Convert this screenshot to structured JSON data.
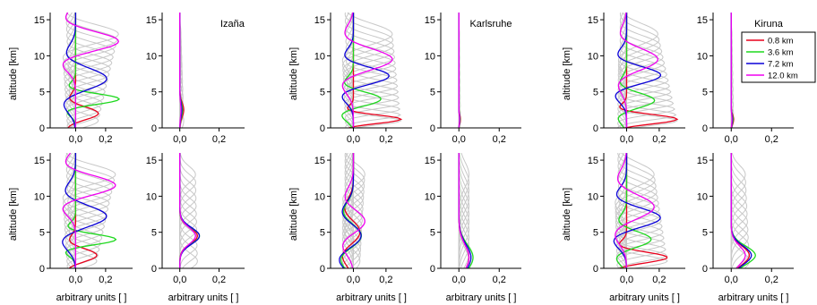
{
  "figure": {
    "site_labels": [
      "Izaña",
      "Karlsruhe",
      "Kiruna"
    ],
    "ylabel": "altitude [km]",
    "xlabel": "arbitrary units [ ]"
  },
  "legend": {
    "placement": "top-right",
    "entries": [
      {
        "label": "0.8 km",
        "color": "#e8001c"
      },
      {
        "label": "3.6 km",
        "color": "#1ed81e"
      },
      {
        "label": "7.2 km",
        "color": "#0a00d8"
      },
      {
        "label": "12.0 km",
        "color": "#f000f0"
      }
    ]
  },
  "colors": {
    "highlight": [
      "#e8001c",
      "#1ed81e",
      "#0a00d8",
      "#f000f0"
    ],
    "background_kernels": "#c8c8c8"
  },
  "chart_data": [
    {
      "type": "line",
      "site": "Izaña",
      "row": "top",
      "panel": "left",
      "ylabel": "altitude [km]",
      "xlabel": "",
      "ylim": [
        0,
        16
      ],
      "xlim": [
        -0.17,
        0.38
      ],
      "yticks": [
        0,
        5,
        10,
        15
      ],
      "xticks": [
        0.0,
        0.2
      ],
      "xtick_labels": [
        "0,0",
        "0,2"
      ],
      "n_gray": 16,
      "series": [
        {
          "name": "0.8 km",
          "color": "#e8001c",
          "peak_alt": 2.0,
          "amp": 0.16,
          "width": 1.2,
          "neg": 0.06
        },
        {
          "name": "3.6 km",
          "color": "#1ed81e",
          "peak_alt": 4.0,
          "amp": 0.3,
          "width": 1.0,
          "neg": 0.07
        },
        {
          "name": "7.2 km",
          "color": "#0a00d8",
          "peak_alt": 6.8,
          "amp": 0.22,
          "width": 2.0,
          "neg": 0.09
        },
        {
          "name": "12.0 km",
          "color": "#f000f0",
          "peak_alt": 12.0,
          "amp": 0.3,
          "width": 1.8,
          "neg": 0.1
        }
      ]
    },
    {
      "type": "line",
      "site": "Izaña",
      "row": "top",
      "panel": "right",
      "ylabel": "",
      "xlabel": "",
      "ylim": [
        0,
        16
      ],
      "xlim": [
        -0.09,
        0.33
      ],
      "yticks": [
        0,
        5,
        10,
        15
      ],
      "xticks": [
        0.0,
        0.2
      ],
      "xtick_labels": [
        "0,0",
        "0,2"
      ],
      "n_gray": 12,
      "series": [
        {
          "name": "0.8 km",
          "color": "#e8001c",
          "peak_alt": 2.5,
          "amp": 0.02,
          "width": 1.4,
          "neg": 0.0
        },
        {
          "name": "3.6 km",
          "color": "#1ed81e",
          "peak_alt": 2.5,
          "amp": 0.014,
          "width": 1.4,
          "neg": 0.0
        },
        {
          "name": "7.2 km",
          "color": "#0a00d8",
          "peak_alt": 2.5,
          "amp": 0.01,
          "width": 1.4,
          "neg": 0.0
        },
        {
          "name": "12.0 km",
          "color": "#f000f0",
          "peak_alt": 2.5,
          "amp": 0.006,
          "width": 1.4,
          "neg": 0.0
        }
      ]
    },
    {
      "type": "line",
      "site": "Karlsruhe",
      "row": "top",
      "panel": "left",
      "ylabel": "altitude [km]",
      "xlabel": "",
      "ylim": [
        0,
        16
      ],
      "xlim": [
        -0.14,
        0.36
      ],
      "yticks": [
        0,
        5,
        10,
        15
      ],
      "xticks": [
        0.0,
        0.2
      ],
      "xtick_labels": [
        "0,0",
        "0,2"
      ],
      "n_gray": 16,
      "series": [
        {
          "name": "0.8 km",
          "color": "#e8001c",
          "peak_alt": 1.2,
          "amp": 0.3,
          "width": 0.8,
          "neg": 0.06
        },
        {
          "name": "3.6 km",
          "color": "#1ed81e",
          "peak_alt": 4.0,
          "amp": 0.18,
          "width": 1.3,
          "neg": 0.08
        },
        {
          "name": "7.2 km",
          "color": "#0a00d8",
          "peak_alt": 7.2,
          "amp": 0.23,
          "width": 1.6,
          "neg": 0.08
        },
        {
          "name": "12.0 km",
          "color": "#f000f0",
          "peak_alt": 9.5,
          "amp": 0.25,
          "width": 2.0,
          "neg": 0.08
        }
      ]
    },
    {
      "type": "line",
      "site": "Karlsruhe",
      "row": "top",
      "panel": "right",
      "ylabel": "",
      "xlabel": "",
      "ylim": [
        0,
        16
      ],
      "xlim": [
        -0.09,
        0.31
      ],
      "yticks": [
        0,
        5,
        10,
        15
      ],
      "xticks": [
        0.0,
        0.2
      ],
      "xtick_labels": [
        "0,0",
        "0,2"
      ],
      "n_gray": 12,
      "series": [
        {
          "name": "0.8 km",
          "color": "#e8001c",
          "peak_alt": 1.2,
          "amp": 0.008,
          "width": 0.8,
          "neg": 0.0
        },
        {
          "name": "3.6 km",
          "color": "#1ed81e",
          "peak_alt": 1.2,
          "amp": 0.006,
          "width": 0.8,
          "neg": 0.0
        },
        {
          "name": "7.2 km",
          "color": "#0a00d8",
          "peak_alt": 1.2,
          "amp": 0.004,
          "width": 0.8,
          "neg": 0.0
        },
        {
          "name": "12.0 km",
          "color": "#f000f0",
          "peak_alt": 1.2,
          "amp": 0.003,
          "width": 0.8,
          "neg": 0.0
        }
      ]
    },
    {
      "type": "line",
      "site": "Kiruna",
      "row": "top",
      "panel": "left",
      "ylabel": "altitude [km]",
      "xlabel": "",
      "ylim": [
        0,
        16
      ],
      "xlim": [
        -0.14,
        0.36
      ],
      "yticks": [
        0,
        5,
        10,
        15
      ],
      "xticks": [
        0.0,
        0.2
      ],
      "xtick_labels": [
        "0,0",
        "0,2"
      ],
      "n_gray": 16,
      "series": [
        {
          "name": "0.8 km",
          "color": "#e8001c",
          "peak_alt": 1.2,
          "amp": 0.32,
          "width": 0.9,
          "neg": 0.07
        },
        {
          "name": "3.6 km",
          "color": "#1ed81e",
          "peak_alt": 3.8,
          "amp": 0.18,
          "width": 1.4,
          "neg": 0.06
        },
        {
          "name": "7.2 km",
          "color": "#0a00d8",
          "peak_alt": 7.3,
          "amp": 0.22,
          "width": 1.6,
          "neg": 0.08
        },
        {
          "name": "12.0 km",
          "color": "#f000f0",
          "peak_alt": 9.5,
          "amp": 0.2,
          "width": 2.0,
          "neg": 0.06
        }
      ]
    },
    {
      "type": "line",
      "site": "Kiruna",
      "row": "top",
      "panel": "right",
      "ylabel": "",
      "xlabel": "",
      "ylim": [
        0,
        16
      ],
      "xlim": [
        -0.09,
        0.31
      ],
      "yticks": [
        0,
        5,
        10,
        15
      ],
      "xticks": [
        0.0,
        0.2
      ],
      "xtick_labels": [
        "0,0",
        "0,2"
      ],
      "n_gray": 12,
      "series": [
        {
          "name": "0.8 km",
          "color": "#e8001c",
          "peak_alt": 1.2,
          "amp": 0.012,
          "width": 0.9,
          "neg": 0.0
        },
        {
          "name": "3.6 km",
          "color": "#1ed81e",
          "peak_alt": 1.2,
          "amp": 0.009,
          "width": 0.9,
          "neg": 0.0
        },
        {
          "name": "7.2 km",
          "color": "#0a00d8",
          "peak_alt": 1.2,
          "amp": 0.006,
          "width": 0.9,
          "neg": 0.0
        },
        {
          "name": "12.0 km",
          "color": "#f000f0",
          "peak_alt": 1.2,
          "amp": 0.004,
          "width": 0.9,
          "neg": 0.0
        }
      ]
    },
    {
      "type": "line",
      "site": "Izaña",
      "row": "bottom",
      "panel": "left",
      "ylabel": "altitude [km]",
      "xlabel": "arbitrary units [ ]",
      "ylim": [
        0,
        16
      ],
      "xlim": [
        -0.17,
        0.38
      ],
      "yticks": [
        0,
        5,
        10,
        15
      ],
      "xticks": [
        0.0,
        0.2
      ],
      "xtick_labels": [
        "0,0",
        "0,2"
      ],
      "n_gray": 16,
      "series": [
        {
          "name": "0.8 km",
          "color": "#e8001c",
          "peak_alt": 1.8,
          "amp": 0.15,
          "width": 1.2,
          "neg": 0.06
        },
        {
          "name": "3.6 km",
          "color": "#1ed81e",
          "peak_alt": 4.0,
          "amp": 0.28,
          "width": 1.0,
          "neg": 0.08
        },
        {
          "name": "7.2 km",
          "color": "#0a00d8",
          "peak_alt": 7.2,
          "amp": 0.22,
          "width": 2.0,
          "neg": 0.1
        },
        {
          "name": "12.0 km",
          "color": "#f000f0",
          "peak_alt": 11.5,
          "amp": 0.28,
          "width": 1.8,
          "neg": 0.1
        }
      ]
    },
    {
      "type": "line",
      "site": "Izaña",
      "row": "bottom",
      "panel": "right",
      "ylabel": "",
      "xlabel": "arbitrary units [ ]",
      "ylim": [
        0,
        16
      ],
      "xlim": [
        -0.09,
        0.33
      ],
      "yticks": [
        0,
        5,
        10,
        15
      ],
      "xticks": [
        0.0,
        0.2
      ],
      "xtick_labels": [
        "0,0",
        "0,2"
      ],
      "n_gray": 12,
      "series": [
        {
          "name": "0.8 km",
          "color": "#e8001c",
          "peak_alt": 4.5,
          "amp": 0.09,
          "width": 1.5,
          "neg": 0.0
        },
        {
          "name": "3.6 km",
          "color": "#1ed81e",
          "peak_alt": 4.5,
          "amp": 0.1,
          "width": 1.5,
          "neg": 0.0
        },
        {
          "name": "7.2 km",
          "color": "#0a00d8",
          "peak_alt": 4.5,
          "amp": 0.1,
          "width": 1.6,
          "neg": 0.0
        },
        {
          "name": "12.0 km",
          "color": "#f000f0",
          "peak_alt": 4.5,
          "amp": 0.08,
          "width": 1.6,
          "neg": 0.0
        }
      ]
    },
    {
      "type": "line",
      "site": "Karlsruhe",
      "row": "bottom",
      "panel": "left",
      "ylabel": "altitude [km]",
      "xlabel": "arbitrary units [ ]",
      "ylim": [
        0,
        16
      ],
      "xlim": [
        -0.14,
        0.36
      ],
      "yticks": [
        0,
        5,
        10,
        15
      ],
      "xticks": [
        0.0,
        0.2
      ],
      "xtick_labels": [
        "0,0",
        "0,2"
      ],
      "n_gray": 16,
      "series": [
        {
          "name": "0.8 km",
          "color": "#e8001c",
          "peak_alt": 5.0,
          "amp": 0.05,
          "width": 2.0,
          "neg": 0.07
        },
        {
          "name": "3.6 km",
          "color": "#1ed81e",
          "peak_alt": 4.5,
          "amp": 0.06,
          "width": 2.0,
          "neg": 0.08
        },
        {
          "name": "7.2 km",
          "color": "#0a00d8",
          "peak_alt": 4.5,
          "amp": 0.06,
          "width": 2.0,
          "neg": 0.09
        },
        {
          "name": "12.0 km",
          "color": "#f000f0",
          "peak_alt": 6.5,
          "amp": 0.08,
          "width": 2.0,
          "neg": 0.07
        }
      ]
    },
    {
      "type": "line",
      "site": "Karlsruhe",
      "row": "bottom",
      "panel": "right",
      "ylabel": "",
      "xlabel": "arbitrary units [ ]",
      "ylim": [
        0,
        16
      ],
      "xlim": [
        -0.09,
        0.31
      ],
      "yticks": [
        0,
        5,
        10,
        15
      ],
      "xticks": [
        0.0,
        0.2
      ],
      "xtick_labels": [
        "0,0",
        "0,2"
      ],
      "n_gray": 12,
      "series": [
        {
          "name": "0.8 km",
          "color": "#e8001c",
          "peak_alt": 1.5,
          "amp": 0.05,
          "width": 2.5,
          "neg": 0.0
        },
        {
          "name": "3.6 km",
          "color": "#1ed81e",
          "peak_alt": 1.5,
          "amp": 0.07,
          "width": 2.5,
          "neg": 0.0
        },
        {
          "name": "7.2 km",
          "color": "#0a00d8",
          "peak_alt": 1.5,
          "amp": 0.06,
          "width": 2.5,
          "neg": 0.0
        },
        {
          "name": "12.0 km",
          "color": "#f000f0",
          "peak_alt": 1.5,
          "amp": 0.05,
          "width": 2.5,
          "neg": 0.0
        }
      ]
    },
    {
      "type": "line",
      "site": "Kiruna",
      "row": "bottom",
      "panel": "left",
      "ylabel": "altitude [km]",
      "xlabel": "arbitrary units [ ]",
      "ylim": [
        0,
        16
      ],
      "xlim": [
        -0.14,
        0.36
      ],
      "yticks": [
        0,
        5,
        10,
        15
      ],
      "xticks": [
        0.0,
        0.2
      ],
      "xtick_labels": [
        "0,0",
        "0,2"
      ],
      "n_gray": 16,
      "series": [
        {
          "name": "0.8 km",
          "color": "#e8001c",
          "peak_alt": 1.5,
          "amp": 0.26,
          "width": 1.0,
          "neg": 0.07
        },
        {
          "name": "3.6 km",
          "color": "#1ed81e",
          "peak_alt": 4.0,
          "amp": 0.16,
          "width": 1.5,
          "neg": 0.07
        },
        {
          "name": "7.2 km",
          "color": "#0a00d8",
          "peak_alt": 7.0,
          "amp": 0.22,
          "width": 1.8,
          "neg": 0.09
        },
        {
          "name": "12.0 km",
          "color": "#f000f0",
          "peak_alt": 8.5,
          "amp": 0.18,
          "width": 2.2,
          "neg": 0.08
        }
      ]
    },
    {
      "type": "line",
      "site": "Kiruna",
      "row": "bottom",
      "panel": "right",
      "ylabel": "",
      "xlabel": "arbitrary units [ ]",
      "ylim": [
        0,
        16
      ],
      "xlim": [
        -0.09,
        0.31
      ],
      "yticks": [
        0,
        5,
        10,
        15
      ],
      "xticks": [
        0.0,
        0.2
      ],
      "xtick_labels": [
        "0,0",
        "0,2"
      ],
      "n_gray": 12,
      "series": [
        {
          "name": "0.8 km",
          "color": "#e8001c",
          "peak_alt": 1.8,
          "amp": 0.09,
          "width": 1.8,
          "neg": 0.0
        },
        {
          "name": "3.6 km",
          "color": "#1ed81e",
          "peak_alt": 1.8,
          "amp": 0.12,
          "width": 1.8,
          "neg": 0.0
        },
        {
          "name": "7.2 km",
          "color": "#0a00d8",
          "peak_alt": 1.8,
          "amp": 0.1,
          "width": 1.8,
          "neg": 0.0
        },
        {
          "name": "12.0 km",
          "color": "#f000f0",
          "peak_alt": 1.8,
          "amp": 0.07,
          "width": 1.8,
          "neg": 0.0
        }
      ]
    }
  ]
}
